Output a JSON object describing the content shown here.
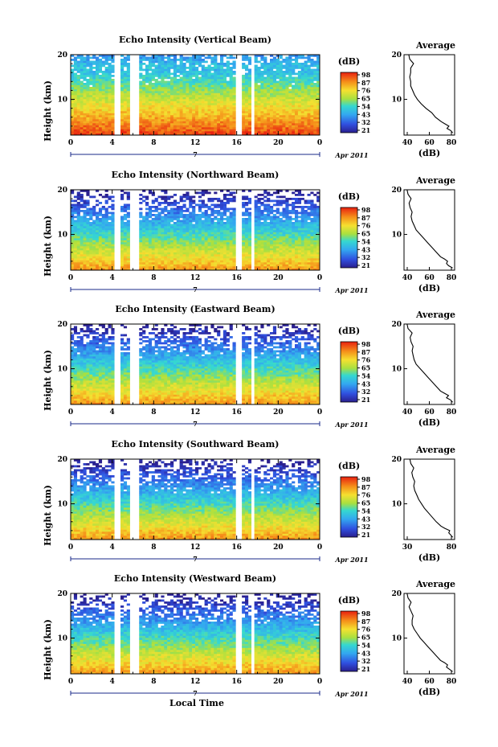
{
  "chart_data": [
    {
      "type": "heatmap",
      "title": "Echo Intensity (Vertical Beam)",
      "ylabel": "Height (km)",
      "x_ticks": [
        "0",
        "4",
        "8",
        "12",
        "16",
        "20",
        "0"
      ],
      "y_ticks": [
        "20",
        "10"
      ],
      "xlim": [
        0,
        24
      ],
      "ylim": [
        2,
        20
      ],
      "date_label": "7",
      "month_label": "Apr 2011",
      "data_gaps_hours": [
        [
          4.2,
          4.8
        ],
        [
          5.8,
          6.7
        ],
        [
          15.9,
          16.6
        ],
        [
          17.3,
          17.8
        ]
      ],
      "colorbar": {
        "unit": "(dB)",
        "ticks": [
          "98",
          "87",
          "76",
          "65",
          "54",
          "43",
          "32",
          "21"
        ]
      },
      "average_profile": {
        "title": "Average",
        "xlabel": "(dB)",
        "x_ticks": [
          "40",
          "60",
          "80"
        ],
        "y_ticks": [
          "20",
          "10"
        ],
        "xlim": [
          35,
          88
        ],
        "height_km": [
          2.5,
          3,
          3.5,
          4,
          4.5,
          5,
          6,
          7,
          8,
          9,
          10,
          11,
          12,
          13,
          14,
          15,
          16,
          17,
          18,
          19,
          20
        ],
        "values_db": [
          86,
          84,
          80,
          82,
          78,
          74,
          68,
          64,
          58,
          53,
          49,
          46,
          44,
          42,
          42,
          41,
          42,
          42,
          45,
          41,
          40
        ]
      }
    },
    {
      "type": "heatmap",
      "title": "Echo Intensity (Northward Beam)",
      "ylabel": "Height (km)",
      "x_ticks": [
        "0",
        "4",
        "8",
        "12",
        "16",
        "20",
        "0"
      ],
      "y_ticks": [
        "20",
        "10"
      ],
      "xlim": [
        0,
        24
      ],
      "ylim": [
        2,
        20
      ],
      "date_label": "7",
      "month_label": "Apr 2011",
      "data_gaps_hours": [
        [
          4.2,
          4.8
        ],
        [
          5.8,
          6.7
        ],
        [
          15.9,
          16.6
        ],
        [
          17.3,
          17.8
        ]
      ],
      "colorbar": {
        "unit": "(dB)",
        "ticks": [
          "98",
          "87",
          "76",
          "65",
          "54",
          "43",
          "32",
          "21"
        ]
      },
      "average_profile": {
        "title": "Average",
        "xlabel": "(dB)",
        "x_ticks": [
          "40",
          "60",
          "80"
        ],
        "y_ticks": [
          "20",
          "10"
        ],
        "xlim": [
          30,
          80
        ],
        "height_km": [
          2.5,
          3,
          3.5,
          4,
          4.5,
          5,
          6,
          7,
          8,
          9,
          10,
          11,
          12,
          13,
          14,
          15,
          16,
          17,
          18,
          19,
          20
        ],
        "values_db": [
          78,
          74,
          72,
          73,
          70,
          66,
          62,
          58,
          54,
          50,
          46,
          42,
          40,
          38,
          37,
          38,
          36,
          35,
          37,
          34,
          33
        ]
      }
    },
    {
      "type": "heatmap",
      "title": "Echo Intensity (Eastward Beam)",
      "ylabel": "Height (km)",
      "x_ticks": [
        "0",
        "4",
        "8",
        "12",
        "16",
        "20",
        "0"
      ],
      "y_ticks": [
        "20",
        "10"
      ],
      "xlim": [
        0,
        24
      ],
      "ylim": [
        2,
        20
      ],
      "date_label": "7",
      "month_label": "Apr 2011",
      "data_gaps_hours": [
        [
          4.2,
          4.8
        ],
        [
          5.8,
          6.7
        ],
        [
          15.9,
          16.6
        ],
        [
          17.3,
          17.8
        ]
      ],
      "colorbar": {
        "unit": "(dB)",
        "ticks": [
          "98",
          "87",
          "76",
          "65",
          "54",
          "43",
          "32",
          "21"
        ]
      },
      "average_profile": {
        "title": "Average",
        "xlabel": "(dB)",
        "x_ticks": [
          "40",
          "60",
          "80"
        ],
        "y_ticks": [
          "20",
          "10"
        ],
        "xlim": [
          30,
          80
        ],
        "height_km": [
          2.5,
          3,
          3.5,
          4,
          4.5,
          5,
          6,
          7,
          8,
          9,
          10,
          11,
          12,
          13,
          14,
          15,
          16,
          17,
          18,
          19,
          20
        ],
        "values_db": [
          78,
          76,
          72,
          74,
          70,
          66,
          62,
          58,
          54,
          50,
          46,
          42,
          40,
          39,
          38,
          39,
          37,
          36,
          38,
          34,
          33
        ]
      }
    },
    {
      "type": "heatmap",
      "title": "Echo Intensity (Southward Beam)",
      "ylabel": "Height (km)",
      "x_ticks": [
        "0",
        "4",
        "8",
        "12",
        "16",
        "20",
        "0"
      ],
      "y_ticks": [
        "20",
        "10"
      ],
      "xlim": [
        0,
        24
      ],
      "ylim": [
        2,
        20
      ],
      "date_label": "7",
      "month_label": "Apr 2011",
      "data_gaps_hours": [
        [
          4.2,
          4.8
        ],
        [
          5.8,
          6.7
        ],
        [
          15.9,
          16.6
        ],
        [
          17.3,
          17.8
        ]
      ],
      "colorbar": {
        "unit": "(dB)",
        "ticks": [
          "98",
          "87",
          "76",
          "65",
          "54",
          "43",
          "32",
          "21"
        ]
      },
      "average_profile": {
        "title": "Average",
        "xlabel": "(dB)",
        "x_ticks": [
          "30",
          "80"
        ],
        "y_ticks": [
          "20",
          "10"
        ],
        "xlim": [
          28,
          80
        ],
        "height_km": [
          2.5,
          3,
          3.5,
          4,
          4.5,
          5,
          6,
          7,
          8,
          9,
          10,
          11,
          12,
          13,
          14,
          15,
          16,
          17,
          18,
          19,
          20
        ],
        "values_db": [
          78,
          76,
          74,
          75,
          70,
          66,
          61,
          57,
          53,
          49,
          46,
          43,
          41,
          39,
          38,
          39,
          37,
          36,
          38,
          35,
          34
        ]
      }
    },
    {
      "type": "heatmap",
      "title": "Echo Intensity (Westward Beam)",
      "ylabel": "Height (km)",
      "x_ticks": [
        "0",
        "4",
        "8",
        "12",
        "16",
        "20",
        "0"
      ],
      "y_ticks": [
        "20",
        "10"
      ],
      "xlim": [
        0,
        24
      ],
      "ylim": [
        2,
        20
      ],
      "date_label": "7",
      "month_label": "Apr 2011",
      "xlabel": "Local Time",
      "data_gaps_hours": [
        [
          4.2,
          4.8
        ],
        [
          5.8,
          6.7
        ],
        [
          15.9,
          16.6
        ],
        [
          17.3,
          17.8
        ]
      ],
      "colorbar": {
        "unit": "(dB)",
        "ticks": [
          "98",
          "87",
          "76",
          "65",
          "54",
          "43",
          "32",
          "21"
        ]
      },
      "average_profile": {
        "title": "Average",
        "xlabel": "(dB)",
        "x_ticks": [
          "40",
          "60",
          "80"
        ],
        "y_ticks": [
          "20",
          "10"
        ],
        "xlim": [
          30,
          80
        ],
        "height_km": [
          2.5,
          3,
          3.5,
          4,
          4.5,
          5,
          6,
          7,
          8,
          9,
          10,
          11,
          12,
          13,
          14,
          15,
          16,
          17,
          18,
          19,
          20
        ],
        "values_db": [
          78,
          75,
          72,
          73,
          70,
          66,
          62,
          58,
          54,
          50,
          46,
          43,
          40,
          38,
          38,
          39,
          37,
          35,
          37,
          34,
          33
        ]
      }
    }
  ]
}
